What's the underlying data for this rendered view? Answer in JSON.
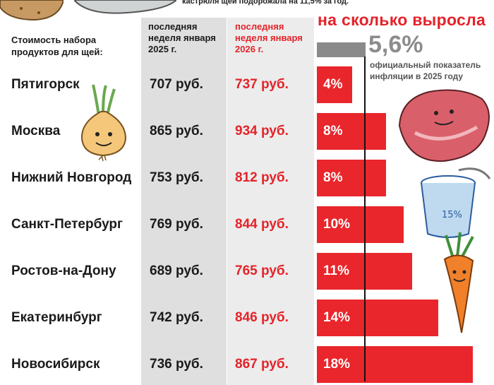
{
  "top_note": "кастрюля щей подорожала на 11,5% за год.",
  "header_label": "Стоимость набора продуктов для щей:",
  "col_2025": "последняя неделя января 2025 г.",
  "col_2026": "последняя неделя января 2026 г.",
  "growth_title": "на сколько выросла",
  "inflation": {
    "value": "5,6%",
    "note": "официальный показатель инфляции в 2025 году",
    "pct": 5.6
  },
  "chart_data": {
    "type": "bar",
    "categories": [
      "Пятигорск",
      "Москва",
      "Нижний Новгород",
      "Санкт-Петербург",
      "Ростов-на-Дону",
      "Екатеринбург",
      "Новосибирск"
    ],
    "series": [
      {
        "values": [
          707,
          865,
          753,
          769,
          689,
          742,
          736
        ]
      },
      {
        "values": [
          737,
          934,
          812,
          844,
          765,
          846,
          867
        ]
      },
      {
        "values": [
          4,
          8,
          8,
          10,
          11,
          14,
          18
        ]
      }
    ],
    "display": {
      "v2025": [
        "707 руб.",
        "865 руб.",
        "753 руб.",
        "769 руб.",
        "689 руб.",
        "742 руб.",
        "736 руб."
      ],
      "v2026": [
        "737 руб.",
        "934 руб.",
        "812 руб.",
        "844 руб.",
        "765 руб.",
        "846 руб.",
        "867  руб."
      ],
      "growth": [
        "4%",
        "8%",
        "8%",
        "10%",
        "11%",
        "14%",
        "18%"
      ]
    }
  },
  "colors": {
    "red": "#e8262b",
    "grey_bar": "#8a8a8a"
  },
  "icons": [
    "potato-icon",
    "onion-icon",
    "meat-icon",
    "sour-cream-icon",
    "carrot-icon",
    "cabbage-icon"
  ]
}
